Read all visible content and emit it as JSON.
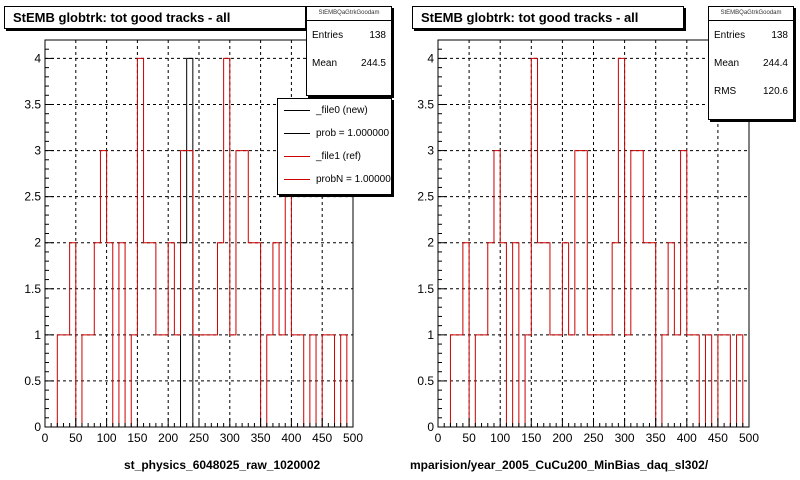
{
  "left_panel": {
    "title": "StEMB globtrk: tot good tracks - all",
    "stats": {
      "name": "StEMBQaGtrkGoodam",
      "entries_label": "Entries",
      "entries_value": "138",
      "mean_label": "Mean",
      "mean_value": "244.5"
    },
    "legend": [
      {
        "label": "_file0 (new)",
        "color": "#000000"
      },
      {
        "label": "prob = 1.000000",
        "color": "#000000"
      },
      {
        "label": "_file1 (ref)",
        "color": "#cc0000"
      },
      {
        "label": "probN = 1.000000",
        "color": "#cc0000"
      }
    ],
    "x_caption": "st_physics_6048025_raw_1020002"
  },
  "right_panel": {
    "title": "StEMB globtrk: tot good tracks - all",
    "stats": {
      "name": "StEMBQaGtrkGoodam",
      "entries_label": "Entries",
      "entries_value": "138",
      "mean_label": "Mean",
      "mean_value": "244.4",
      "rms_label": "RMS",
      "rms_value": "120.6"
    },
    "x_caption": "mparision/year_2005_CuCu200_MinBias_daq_sl302/"
  },
  "chart_data": [
    {
      "type": "histogram",
      "title": "StEMB globtrk: tot good tracks - all",
      "xlim": [
        0,
        500
      ],
      "ylim": [
        0,
        4.2
      ],
      "x_ticks": [
        0,
        50,
        100,
        150,
        200,
        250,
        300,
        350,
        400,
        450,
        500
      ],
      "y_ticks": [
        0,
        0.5,
        1,
        1.5,
        2,
        2.5,
        3,
        3.5,
        4
      ],
      "grid": true,
      "bin_width": 10,
      "series": [
        {
          "name": "_file0 (new)",
          "color": "#000000",
          "bins": [
            [
              220,
              2
            ],
            [
              230,
              4
            ]
          ]
        },
        {
          "name": "_file1 (ref)",
          "color": "#cc0000",
          "bins": [
            [
              0,
              0
            ],
            [
              10,
              0
            ],
            [
              20,
              1
            ],
            [
              30,
              1
            ],
            [
              40,
              2
            ],
            [
              50,
              0
            ],
            [
              60,
              1
            ],
            [
              70,
              1
            ],
            [
              80,
              2
            ],
            [
              90,
              3
            ],
            [
              100,
              2
            ],
            [
              110,
              0
            ],
            [
              120,
              2
            ],
            [
              130,
              0
            ],
            [
              140,
              1
            ],
            [
              150,
              4
            ],
            [
              160,
              2
            ],
            [
              170,
              2
            ],
            [
              180,
              1
            ],
            [
              190,
              1
            ],
            [
              200,
              2
            ],
            [
              210,
              1
            ],
            [
              220,
              3
            ],
            [
              230,
              3
            ],
            [
              240,
              1
            ],
            [
              250,
              1
            ],
            [
              260,
              1
            ],
            [
              270,
              1
            ],
            [
              280,
              2
            ],
            [
              290,
              4
            ],
            [
              300,
              1
            ],
            [
              310,
              3
            ],
            [
              320,
              3
            ],
            [
              330,
              2
            ],
            [
              340,
              2
            ],
            [
              350,
              0
            ],
            [
              360,
              1
            ],
            [
              370,
              2
            ],
            [
              380,
              1
            ],
            [
              390,
              3
            ],
            [
              400,
              1
            ],
            [
              410,
              1
            ],
            [
              420,
              0
            ],
            [
              430,
              1
            ],
            [
              440,
              0
            ],
            [
              450,
              1
            ],
            [
              460,
              1
            ],
            [
              470,
              0
            ],
            [
              480,
              1
            ],
            [
              490,
              0
            ]
          ]
        }
      ]
    },
    {
      "type": "histogram",
      "title": "StEMB globtrk: tot good tracks - all",
      "xlim": [
        0,
        500
      ],
      "ylim": [
        0,
        4.2
      ],
      "x_ticks": [
        0,
        50,
        100,
        150,
        200,
        250,
        300,
        350,
        400,
        450,
        500
      ],
      "y_ticks": [
        0,
        0.5,
        1,
        1.5,
        2,
        2.5,
        3,
        3.5,
        4
      ],
      "grid": true,
      "bin_width": 10,
      "series": [
        {
          "color": "#cc0000",
          "bins": [
            [
              0,
              0
            ],
            [
              10,
              0
            ],
            [
              20,
              1
            ],
            [
              30,
              1
            ],
            [
              40,
              2
            ],
            [
              50,
              0
            ],
            [
              60,
              1
            ],
            [
              70,
              1
            ],
            [
              80,
              2
            ],
            [
              90,
              3
            ],
            [
              100,
              2
            ],
            [
              110,
              0
            ],
            [
              120,
              2
            ],
            [
              130,
              0
            ],
            [
              140,
              1
            ],
            [
              150,
              4
            ],
            [
              160,
              2
            ],
            [
              170,
              2
            ],
            [
              180,
              1
            ],
            [
              190,
              1
            ],
            [
              200,
              2
            ],
            [
              210,
              1
            ],
            [
              220,
              3
            ],
            [
              230,
              3
            ],
            [
              240,
              1
            ],
            [
              250,
              1
            ],
            [
              260,
              1
            ],
            [
              270,
              1
            ],
            [
              280,
              2
            ],
            [
              290,
              4
            ],
            [
              300,
              1
            ],
            [
              310,
              3
            ],
            [
              320,
              3
            ],
            [
              330,
              2
            ],
            [
              340,
              2
            ],
            [
              350,
              0
            ],
            [
              360,
              1
            ],
            [
              370,
              2
            ],
            [
              380,
              1
            ],
            [
              390,
              3
            ],
            [
              400,
              1
            ],
            [
              410,
              1
            ],
            [
              420,
              0
            ],
            [
              430,
              1
            ],
            [
              440,
              0
            ],
            [
              450,
              1
            ],
            [
              460,
              1
            ],
            [
              470,
              0
            ],
            [
              480,
              1
            ],
            [
              490,
              0
            ]
          ]
        }
      ]
    }
  ]
}
